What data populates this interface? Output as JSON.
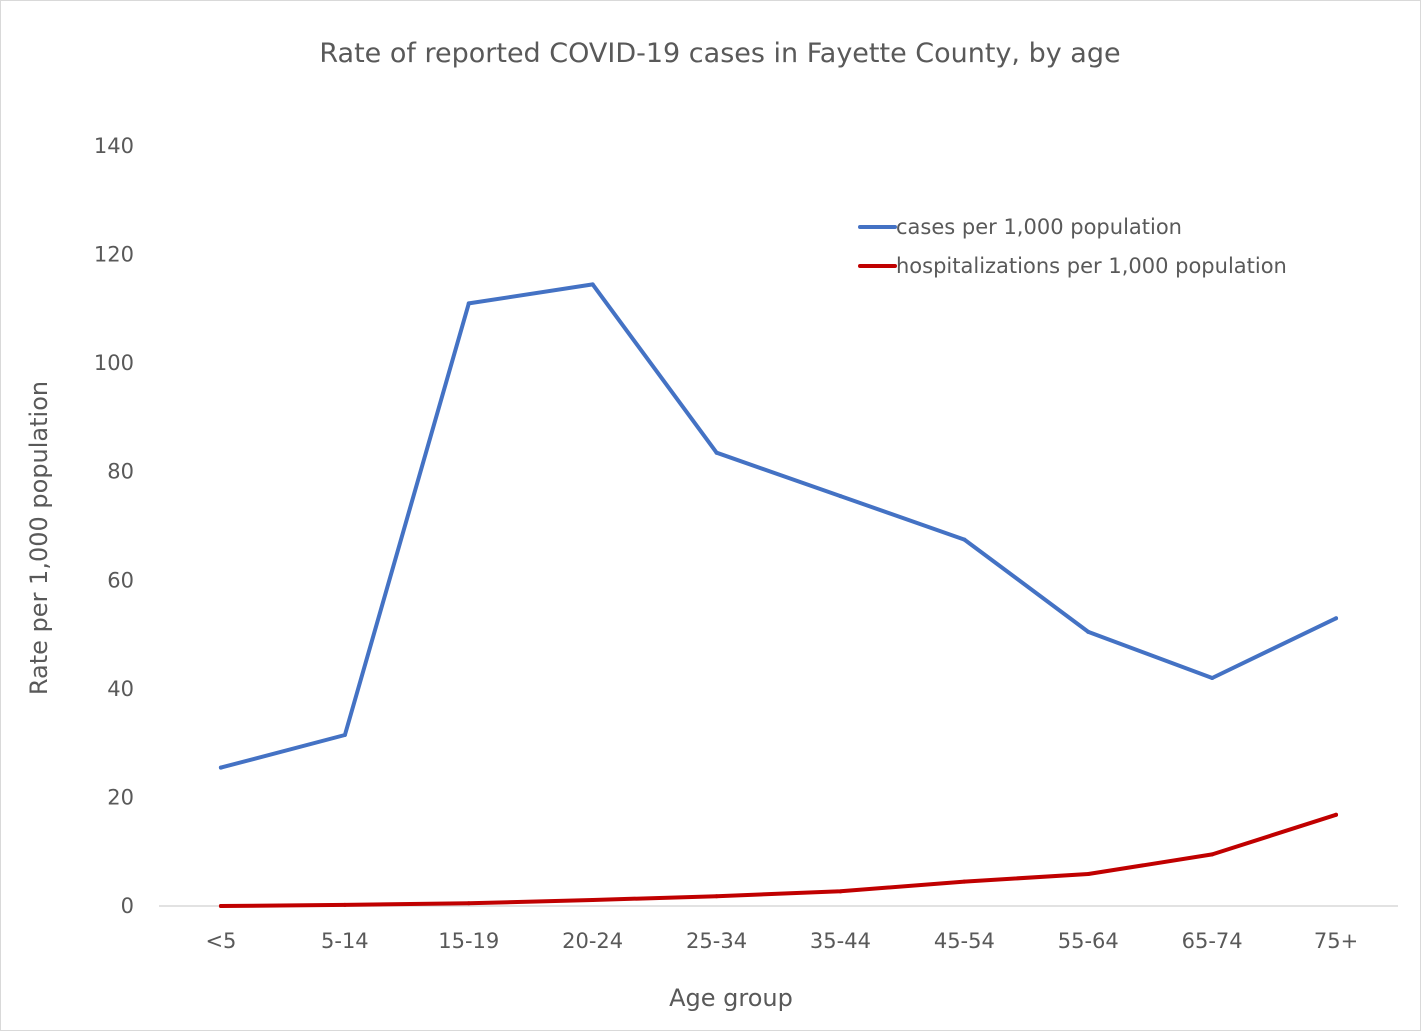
{
  "chart_data": {
    "type": "line",
    "title": "Rate of reported COVID-19 cases in Fayette County, by age",
    "xlabel": "Age group",
    "ylabel": "Rate per 1,000 population",
    "categories": [
      "<5",
      "5-14",
      "15-19",
      "20-24",
      "25-34",
      "35-44",
      "45-54",
      "55-64",
      "65-74",
      "75+"
    ],
    "ylim": [
      0,
      140
    ],
    "yticks": [
      "0",
      "20",
      "40",
      "60",
      "80",
      "100",
      "120",
      "140"
    ],
    "grid": false,
    "legend_position": "top-right",
    "series": [
      {
        "name": "cases per 1,000 population",
        "color": "#4472C4",
        "values": [
          25.5,
          31.5,
          111,
          114.5,
          83.5,
          75.5,
          67.5,
          50.5,
          42,
          53
        ]
      },
      {
        "name": "hospitalizations per 1,000 population",
        "color": "#C00000",
        "values": [
          0,
          0.2,
          0.5,
          1.1,
          1.8,
          2.7,
          4.5,
          5.9,
          9.5,
          16.8
        ]
      }
    ]
  }
}
